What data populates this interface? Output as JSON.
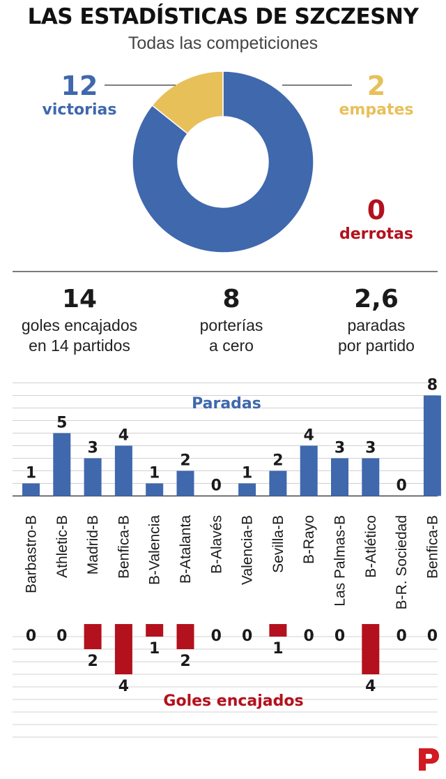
{
  "header": {
    "title": "LAS ESTADÍSTICAS DE SZCZESNY",
    "subtitle": "Todas las competiciones"
  },
  "results": {
    "victorias": {
      "value": "12",
      "label": "victorias"
    },
    "empates": {
      "value": "2",
      "label": "empates"
    },
    "derrotas": {
      "value": "0",
      "label": "derrotas"
    }
  },
  "stats": [
    {
      "value": "14",
      "line1": "goles encajados",
      "line2": "en 14 partidos"
    },
    {
      "value": "8",
      "line1": "porterías",
      "line2": "a cero"
    },
    {
      "value": "2,6",
      "line1": "paradas",
      "line2": "por partido"
    }
  ],
  "colors": {
    "blue": "#3f68ad",
    "yellow": "#e8c05a",
    "red": "#b3111d",
    "grid": "#d0d0d0"
  },
  "logo": "periodico-logo",
  "chart_data": [
    {
      "type": "pie",
      "categories": [
        "victorias",
        "empates",
        "derrotas"
      ],
      "values": [
        12,
        2,
        0
      ]
    },
    {
      "type": "bar",
      "categories": [
        "Barbastro-B",
        "Athletic-B",
        "Madrid-B",
        "Benfica-B",
        "B-Valencia",
        "B-Atalanta",
        "B-Alavés",
        "Valencia-B",
        "Sevilla-B",
        "B-Rayo",
        "Las Palmas-B",
        "B-Atlético",
        "B-R. Sociedad",
        "Benfica-B"
      ],
      "series": [
        {
          "name": "Paradas",
          "values": [
            1,
            5,
            3,
            4,
            1,
            2,
            0,
            1,
            2,
            4,
            3,
            3,
            0,
            8
          ]
        },
        {
          "name": "Goles encajados",
          "values": [
            0,
            0,
            2,
            4,
            1,
            2,
            0,
            0,
            1,
            0,
            0,
            4,
            0,
            0
          ]
        }
      ],
      "ylim_paradas": [
        0,
        8
      ],
      "ylim_goles": [
        0,
        9
      ],
      "grid": true
    }
  ]
}
